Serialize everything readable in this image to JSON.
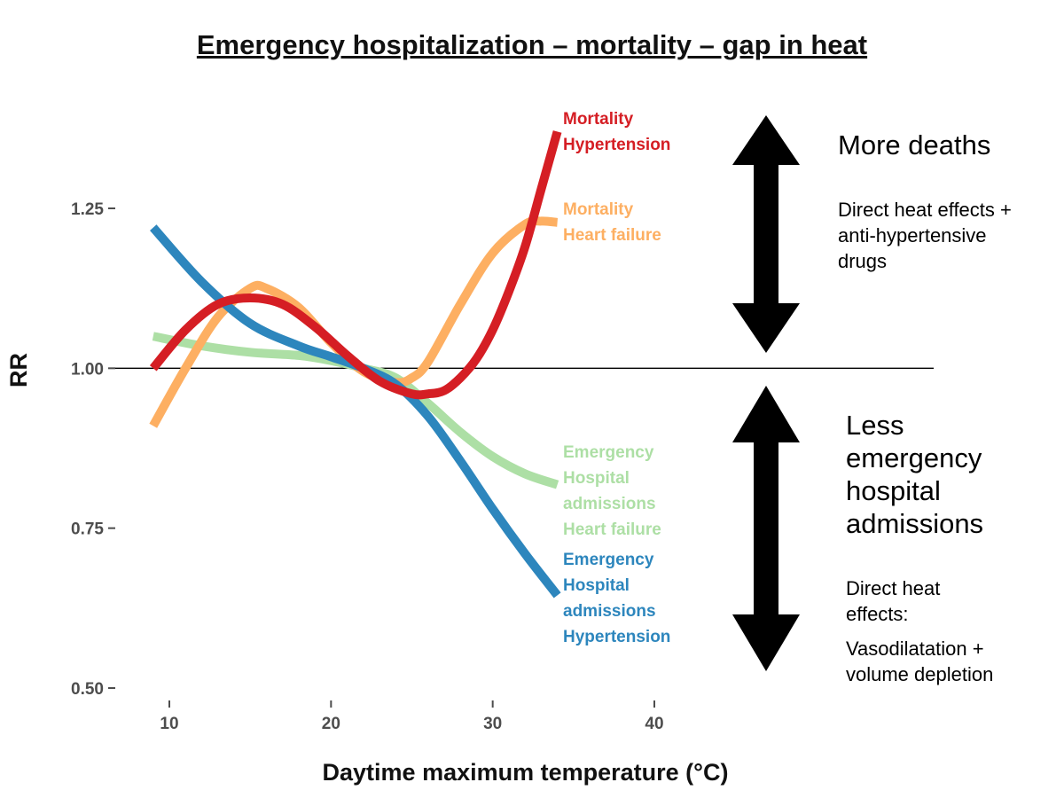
{
  "chart_data": {
    "type": "line",
    "title": "Emergency hospitalization – mortality – gap in heat",
    "xlabel": "Daytime maximum temperature (°C)",
    "ylabel": "RR",
    "xlim": [
      8,
      50
    ],
    "ylim": [
      0.5,
      1.4
    ],
    "x_ticks": [
      10,
      20,
      30,
      40
    ],
    "y_ticks": [
      0.5,
      0.75,
      1.0,
      1.25
    ],
    "y_tick_labels": [
      "0.50",
      "0.75",
      "1.00",
      "1.25"
    ],
    "reference_line": 1.0,
    "series": [
      {
        "name": "Emergency Hospital admissions Heart failure",
        "label_lines": [
          "Emergency",
          "Hospital",
          "admissions",
          "Heart failure"
        ],
        "color": "#addfa5",
        "x": [
          9,
          12,
          15,
          18,
          20,
          22,
          24,
          26,
          28,
          30,
          32,
          34
        ],
        "values": [
          1.05,
          1.035,
          1.025,
          1.02,
          1.012,
          1.0,
          0.985,
          0.945,
          0.9,
          0.862,
          0.835,
          0.818
        ]
      },
      {
        "name": "Mortality Heart failure",
        "label_lines": [
          "Mortality",
          "Heart failure"
        ],
        "color": "#fdaf62",
        "x": [
          9,
          11,
          13,
          15,
          16,
          18,
          20,
          22,
          24,
          25,
          26,
          28,
          30,
          32,
          33,
          34
        ],
        "values": [
          0.91,
          1.0,
          1.08,
          1.125,
          1.125,
          1.095,
          1.04,
          0.995,
          0.978,
          0.985,
          1.01,
          1.1,
          1.18,
          1.225,
          1.23,
          1.228
        ]
      },
      {
        "name": "Emergency Hospital admissions Hypertension",
        "label_lines": [
          "Emergency",
          "Hospital",
          "admissions",
          "Hypertension"
        ],
        "color": "#2d86bd",
        "x": [
          9,
          12,
          15,
          18,
          20,
          22,
          24,
          26,
          28,
          30,
          32,
          34
        ],
        "values": [
          1.22,
          1.135,
          1.07,
          1.035,
          1.018,
          1.0,
          0.975,
          0.925,
          0.855,
          0.78,
          0.71,
          0.645
        ]
      },
      {
        "name": "Mortality Hypertension",
        "label_lines": [
          "Mortality",
          "Hypertension"
        ],
        "color": "#d51e24",
        "x": [
          9,
          11,
          13,
          15,
          17,
          19,
          21,
          23,
          25,
          26,
          27,
          28,
          29,
          30,
          31,
          32,
          33,
          34
        ],
        "values": [
          1.0,
          1.06,
          1.1,
          1.11,
          1.1,
          1.065,
          1.02,
          0.98,
          0.96,
          0.96,
          0.965,
          0.985,
          1.015,
          1.06,
          1.12,
          1.19,
          1.28,
          1.37
        ]
      }
    ]
  },
  "annotations": {
    "top": {
      "heading": "More deaths",
      "lines": [
        "Direct heat effects +",
        "anti-hypertensive",
        "drugs"
      ]
    },
    "bottom": {
      "heading_lines": [
        "Less",
        "emergency",
        "hospital",
        "admissions"
      ],
      "lines": [
        "Direct heat",
        "effects:"
      ],
      "lines2": [
        "Vasodilatation +",
        "volume depletion"
      ]
    }
  },
  "colors": {
    "axis_text": "#4d4d4d",
    "reference_line": "#000000",
    "arrow": "#000000"
  }
}
